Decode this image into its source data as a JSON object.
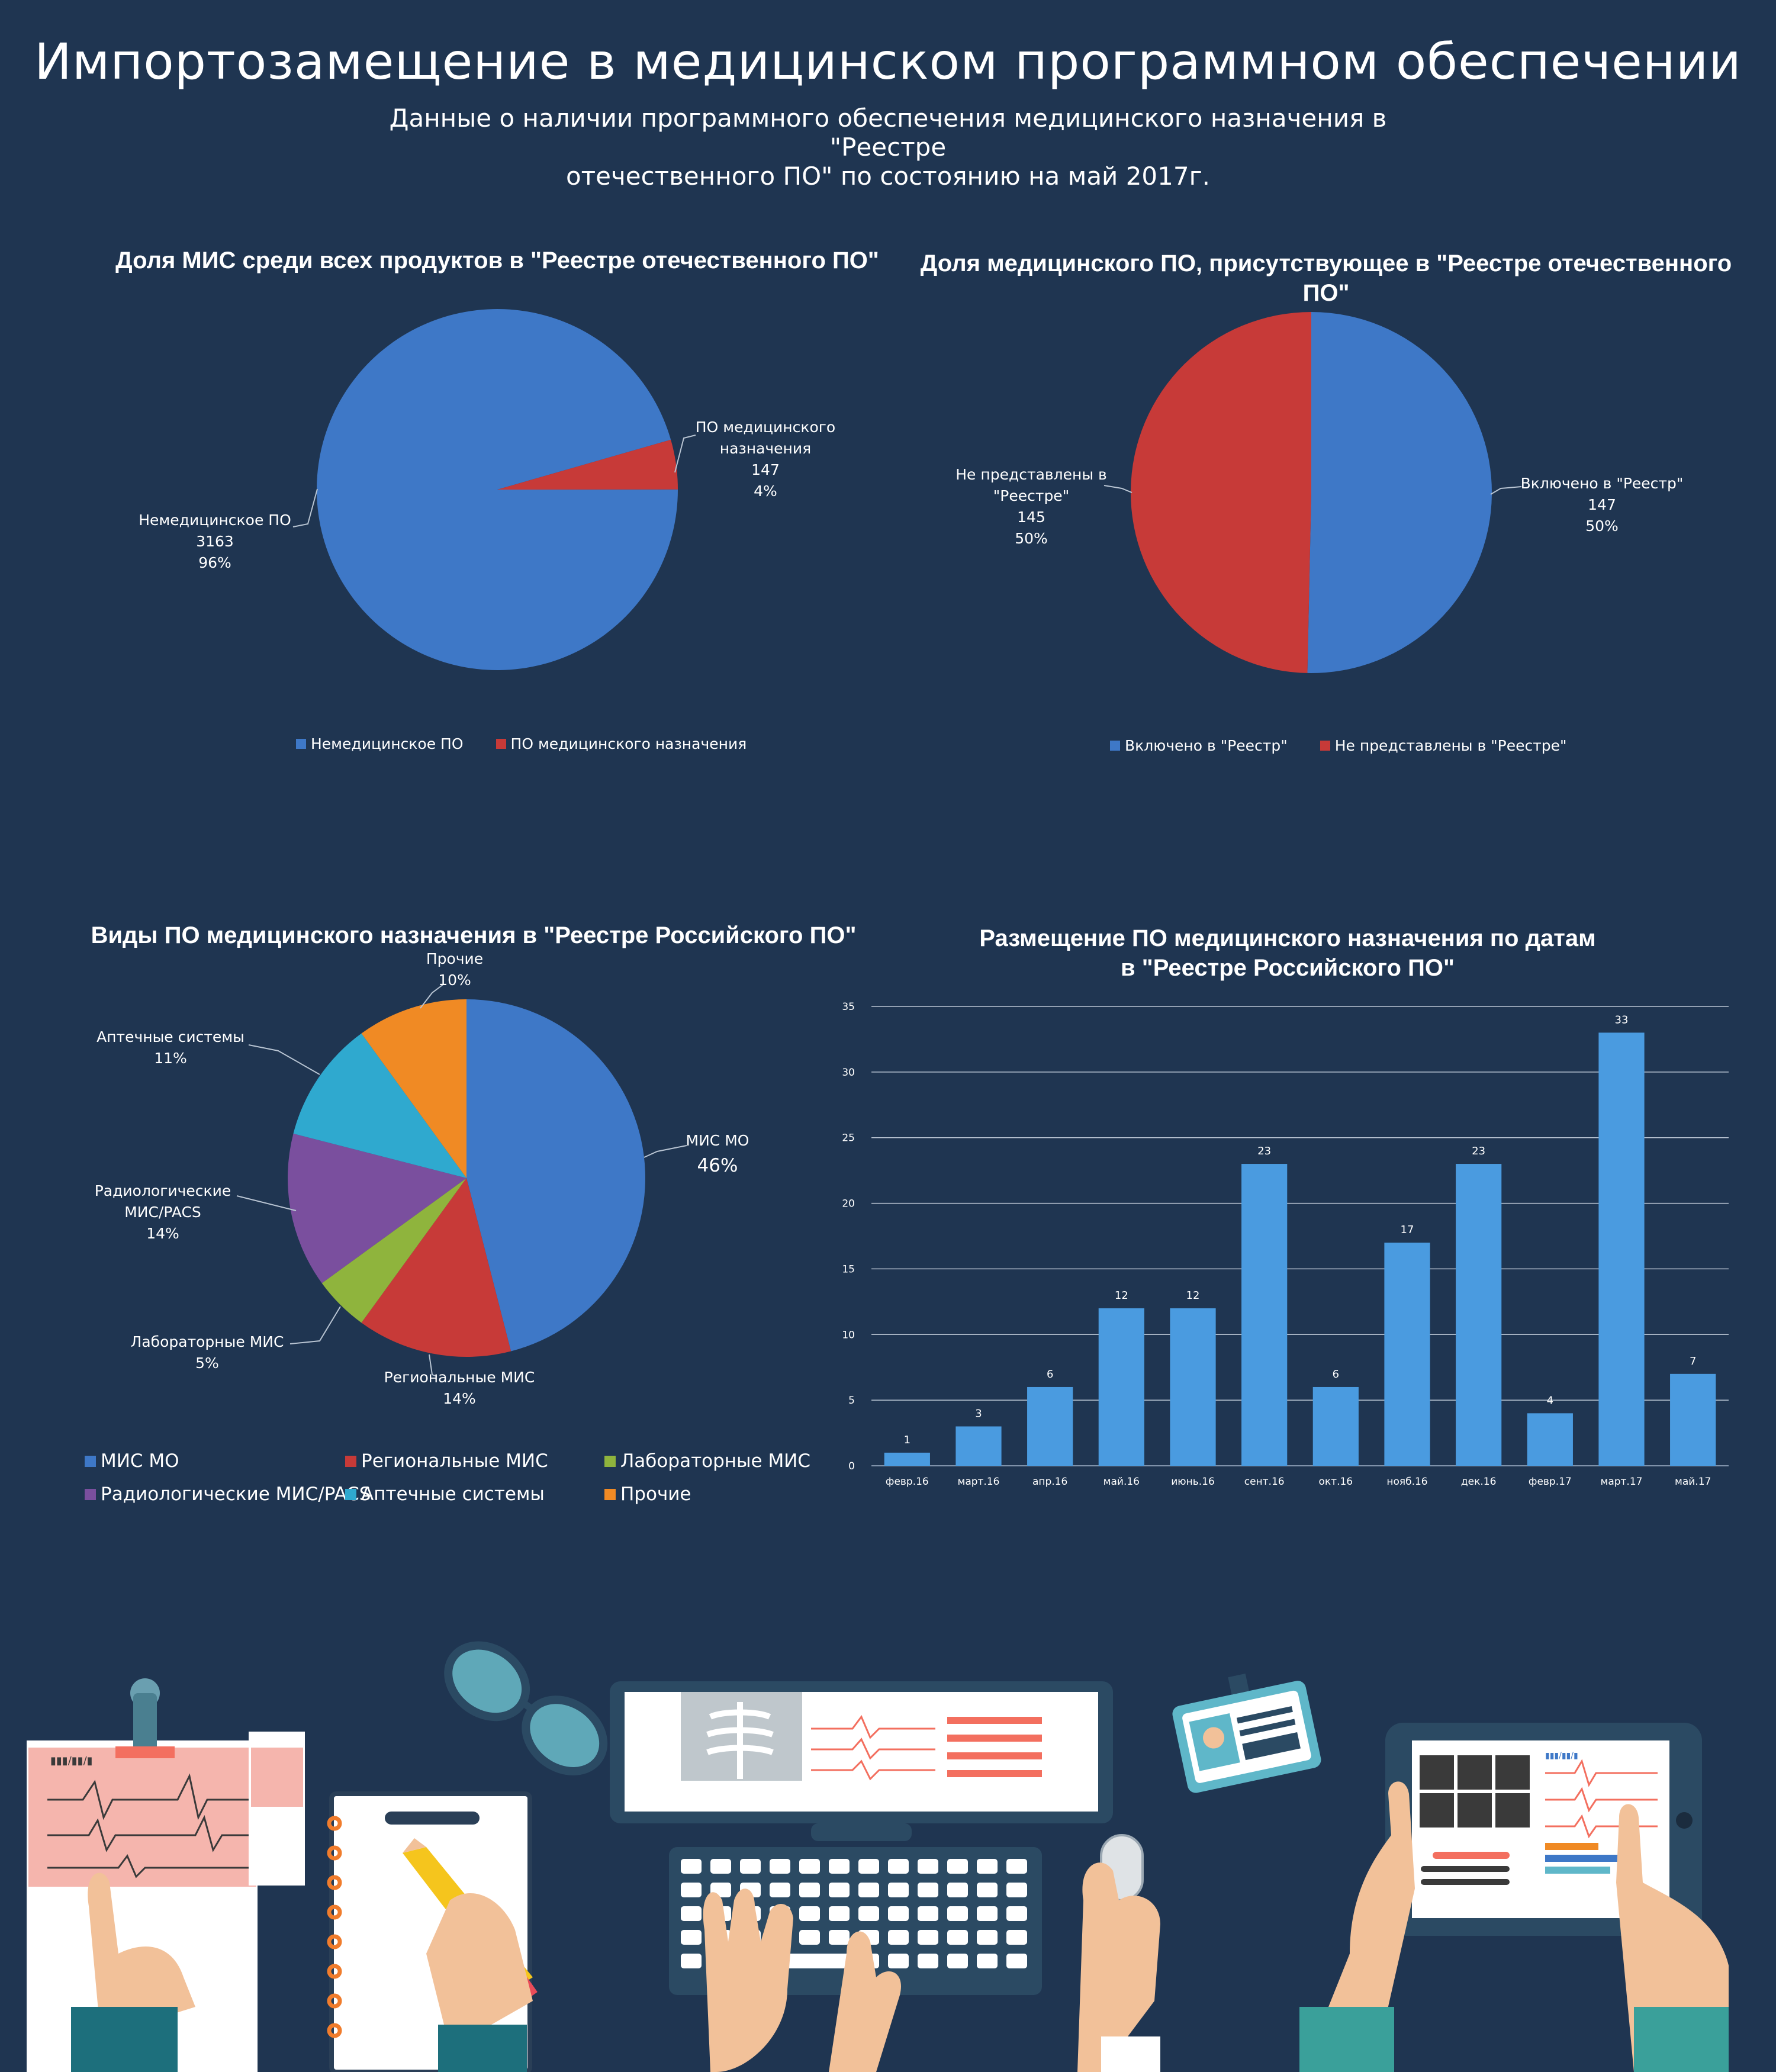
{
  "header": {
    "title": "Импортозамещение в медицинском программном обеспечении",
    "subtitle_line1": "Данные о наличии программного обеспечения медицинского назначения в \"Реестре",
    "subtitle_line2": "отечественного ПО\" по состоянию на май 2017г."
  },
  "chart_data": [
    {
      "type": "pie",
      "title": "Доля МИС среди всех продуктов в \"Реестре отечественного ПО\"",
      "slices": [
        {
          "name": "Немедицинское ПО",
          "label_lines": [
            "Немедицинское ПО",
            "3163",
            "96%"
          ],
          "value": 3163,
          "percent": "96%",
          "color": "#3e78c7"
        },
        {
          "name": "ПО медицинского назначения",
          "label_lines": [
            "ПО медицинского",
            "назначения",
            "147",
            "4%"
          ],
          "value": 147,
          "percent": "4%",
          "color": "#c73a38"
        }
      ],
      "legend": [
        "Немедицинское ПО",
        "ПО медицинского назначения"
      ],
      "legend_position": "bottom"
    },
    {
      "type": "pie",
      "title": "Доля медицинского ПО, присутствующее в \"Реестре отечественного ПО\"",
      "slices": [
        {
          "name": "Включено в \"Реестр\"",
          "label_lines": [
            "Включено в \"Реестр\"",
            "147",
            "50%"
          ],
          "value": 147,
          "percent": "50%",
          "color": "#3e78c7"
        },
        {
          "name": "Не представлены в \"Реестре\"",
          "label_lines": [
            "Не представлены в",
            "\"Реестре\"",
            "145",
            "50%"
          ],
          "value": 145,
          "percent": "50%",
          "color": "#c73a38"
        }
      ],
      "legend": [
        "Включено в \"Реестр\"",
        "Не представлены в \"Реестре\""
      ],
      "legend_position": "bottom"
    },
    {
      "type": "pie",
      "title": "Виды ПО медицинского назначения в \"Реестре Российского ПО\"",
      "slices": [
        {
          "name": "МИС МО",
          "label_lines": [
            "МИС МО",
            "46%"
          ],
          "percent": 46,
          "color": "#3e78c7"
        },
        {
          "name": "Региональные МИС",
          "label_lines": [
            "Региональные МИС",
            "14%"
          ],
          "percent": 14,
          "color": "#c73a38"
        },
        {
          "name": "Лабораторные МИС",
          "label_lines": [
            "Лабораторные МИС",
            "5%"
          ],
          "percent": 5,
          "color": "#8fb43d"
        },
        {
          "name": "Радиологические МИС/PACS",
          "label_lines": [
            "Радиологические",
            "МИС/PACS",
            "14%"
          ],
          "percent": 14,
          "color": "#7a4f9e"
        },
        {
          "name": "Аптечные системы",
          "label_lines": [
            "Аптечные системы",
            "11%"
          ],
          "percent": 11,
          "color": "#2fa9cf"
        },
        {
          "name": "Прочие",
          "label_lines": [
            "Прочие",
            "10%"
          ],
          "percent": 10,
          "color": "#f08a24"
        }
      ],
      "legend": [
        "МИС МО",
        "Региональные МИС",
        "Лабораторные МИС",
        "Радиологические  МИС/PACS",
        "Аптечные системы",
        "Прочие"
      ],
      "legend_position": "bottom"
    },
    {
      "type": "bar",
      "title_line1": "Размещение ПО медицинского назначения по датам",
      "title_line2": "в \"Реестре Российского ПО\"",
      "categories": [
        "февр.16",
        "март.16",
        "апр.16",
        "май.16",
        "июнь.16",
        "сент.16",
        "окт.16",
        "нояб.16",
        "дек.16",
        "февр.17",
        "март.17",
        "май.17"
      ],
      "values": [
        1,
        3,
        6,
        12,
        12,
        23,
        6,
        17,
        23,
        4,
        33,
        7
      ],
      "ylim": [
        0,
        35
      ],
      "yticks": [
        0,
        5,
        10,
        15,
        20,
        25,
        30,
        35
      ],
      "grid": true,
      "color": "#4a9be0"
    }
  ],
  "illustration": {
    "ecg_sheet_label": "▮▮▮/▮▮/▮",
    "tablet_label": "▮▮▮/▮▮/▮"
  }
}
